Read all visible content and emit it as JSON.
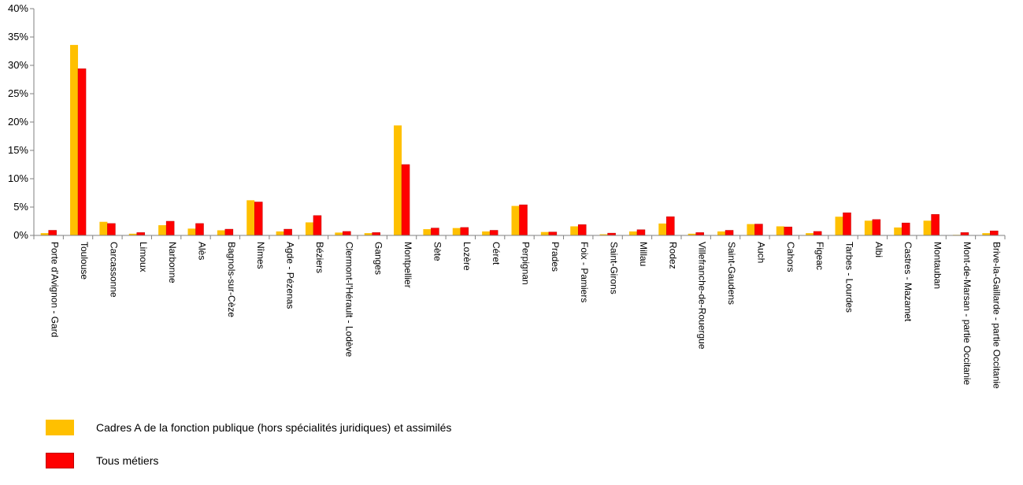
{
  "chart_data": {
    "type": "bar",
    "title": "",
    "xlabel": "",
    "ylabel": "",
    "ylim": [
      0,
      40
    ],
    "yticks": [
      "0%",
      "5%",
      "10%",
      "15%",
      "20%",
      "25%",
      "30%",
      "35%",
      "40%"
    ],
    "grid": false,
    "legend_position": "bottom-left",
    "categories": [
      "Porte d'Avignon - Gard",
      "Toulouse",
      "Carcassonne",
      "Limoux",
      "Narbonne",
      "Alès",
      "Bagnols-sur-Cèze",
      "Nîmes",
      "Agde - Pézenas",
      "Béziers",
      "Clermont-l'Hérault - Lodève",
      "Ganges",
      "Montpellier",
      "Sète",
      "Lozère",
      "Céret",
      "Perpignan",
      "Prades",
      "Foix - Pamiers",
      "Saint-Girons",
      "Millau",
      "Rodez",
      "Villefranche-de-Rouergue",
      "Saint-Gaudens",
      "Auch",
      "Cahors",
      "Figeac",
      "Tarbes - Lourdes",
      "Albi",
      "Castres - Mazamet",
      "Montauban",
      "Mont-de-Marsan - partie Occitanie",
      "Brive-la-Gaillarde - partie Occitanie"
    ],
    "series": [
      {
        "name": "Cadres A de la fonction publique (hors spécialités juridiques) et assimilés",
        "color": "#FFC000",
        "values": [
          0.4,
          33.6,
          2.4,
          0.3,
          1.8,
          1.2,
          0.9,
          6.2,
          0.7,
          2.3,
          0.5,
          0.4,
          19.4,
          1.1,
          1.3,
          0.7,
          5.2,
          0.6,
          1.6,
          0.2,
          0.7,
          2.1,
          0.3,
          0.7,
          2.0,
          1.6,
          0.4,
          3.3,
          2.6,
          1.4,
          2.6,
          0.1,
          0.4
        ]
      },
      {
        "name": "Tous métiers",
        "color": "#FF0000",
        "values": [
          0.9,
          29.4,
          2.1,
          0.5,
          2.5,
          2.1,
          1.1,
          5.9,
          1.1,
          3.5,
          0.7,
          0.5,
          12.5,
          1.3,
          1.4,
          0.9,
          5.4,
          0.6,
          1.9,
          0.4,
          1.0,
          3.3,
          0.5,
          0.9,
          2.0,
          1.5,
          0.7,
          4.0,
          2.8,
          2.2,
          3.7,
          0.5,
          0.8
        ]
      }
    ]
  }
}
